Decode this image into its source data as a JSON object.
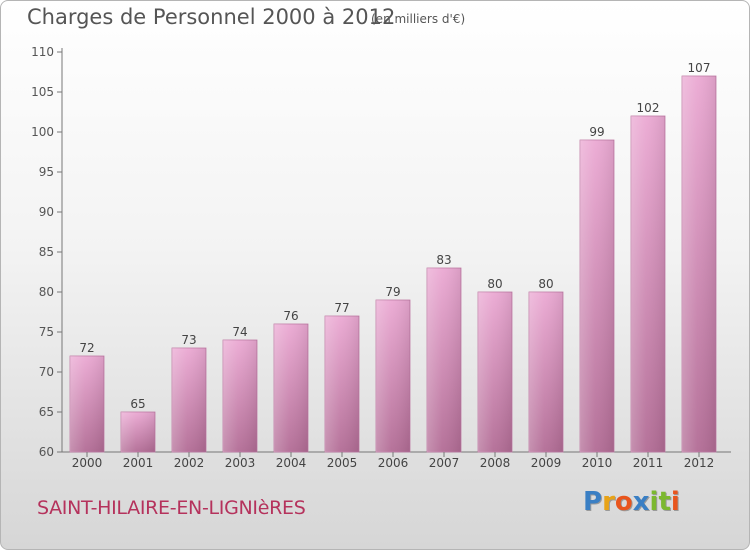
{
  "title": "Charges de Personnel 2000 à 2012",
  "unit_label": "(en milliers d'€)",
  "city": "SAINT-HILAIRE-EN-LIGNIèRES",
  "logo": {
    "text": "Proxiti",
    "letters": [
      "P",
      "r",
      "o",
      "x",
      "i",
      "t",
      "i"
    ],
    "colors": [
      "#3a7fc4",
      "#e8a317",
      "#e8551d",
      "#3a7fc4",
      "#7cb82f",
      "#7cb82f",
      "#e8551d"
    ]
  },
  "colors": {
    "bar_light": "#eba9d3",
    "bar_dark": "#b26c95",
    "text": "#555555"
  },
  "chart_data": {
    "type": "bar",
    "title": "Charges de Personnel 2000 à 2012",
    "categories": [
      "2000",
      "2001",
      "2002",
      "2003",
      "2004",
      "2005",
      "2006",
      "2007",
      "2008",
      "2009",
      "2010",
      "2011",
      "2012"
    ],
    "values": [
      72,
      65,
      73,
      74,
      76,
      77,
      79,
      83,
      80,
      80,
      99,
      102,
      107
    ],
    "ylim": [
      60,
      110
    ],
    "yticks": [
      60,
      65,
      70,
      75,
      80,
      85,
      90,
      95,
      100,
      105,
      110
    ],
    "grid": false
  }
}
